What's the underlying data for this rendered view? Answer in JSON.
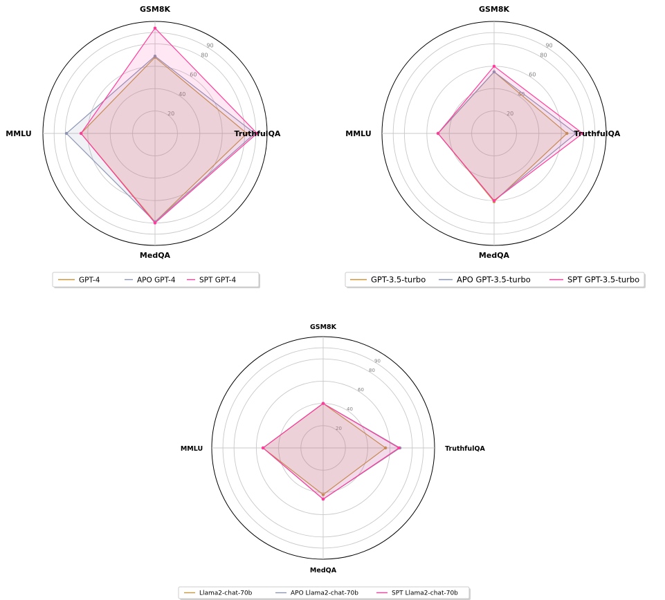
{
  "chart_data": [
    {
      "type": "radar",
      "axes": [
        "GSM8K",
        "TruthfulQA",
        "MedQA",
        "MMLU"
      ],
      "radial_ticks": [
        20,
        40,
        60,
        80,
        90
      ],
      "rlim": [
        0,
        100
      ],
      "grid": true,
      "legend_position": "bottom",
      "series": [
        {
          "name": "GPT-4",
          "color": "#c8963c",
          "values": [
            68,
            82,
            79,
            66
          ]
        },
        {
          "name": "APO GPT-4",
          "color": "#8c96b4",
          "values": [
            69,
            89,
            79,
            79
          ]
        },
        {
          "name": "SPT GPT-4",
          "color": "#ff3c9b",
          "values": [
            94,
            91,
            80,
            66
          ]
        }
      ]
    },
    {
      "type": "radar",
      "axes": [
        "GSM8K",
        "TruthfulQA",
        "MedQA",
        "MMLU"
      ],
      "radial_ticks": [
        20,
        40,
        60,
        80,
        90
      ],
      "rlim": [
        0,
        100
      ],
      "grid": true,
      "legend_position": "bottom",
      "series": [
        {
          "name": "GPT-3.5-turbo",
          "color": "#c8963c",
          "values": [
            55,
            65,
            61,
            50
          ]
        },
        {
          "name": "APO GPT-3.5-turbo",
          "color": "#8c96b4",
          "values": [
            55,
            73,
            60,
            50
          ]
        },
        {
          "name": "SPT GPT-3.5-turbo",
          "color": "#ff3c9b",
          "values": [
            60,
            79,
            60,
            50
          ]
        }
      ]
    },
    {
      "type": "radar",
      "axes": [
        "GSM8K",
        "TruthfulQA",
        "MedQA",
        "MMLU"
      ],
      "radial_ticks": [
        20,
        40,
        60,
        80,
        90
      ],
      "rlim": [
        0,
        100
      ],
      "grid": true,
      "legend_position": "bottom",
      "series": [
        {
          "name": "Llama2-chat-70b",
          "color": "#c8963c",
          "values": [
            40,
            56,
            42,
            54
          ]
        },
        {
          "name": "APO Llama2-chat-70b",
          "color": "#8c96b4",
          "values": [
            40,
            69,
            46,
            54
          ]
        },
        {
          "name": "SPT Llama2-chat-70b",
          "color": "#ff3c9b",
          "values": [
            40,
            68,
            46,
            54
          ]
        }
      ]
    }
  ]
}
